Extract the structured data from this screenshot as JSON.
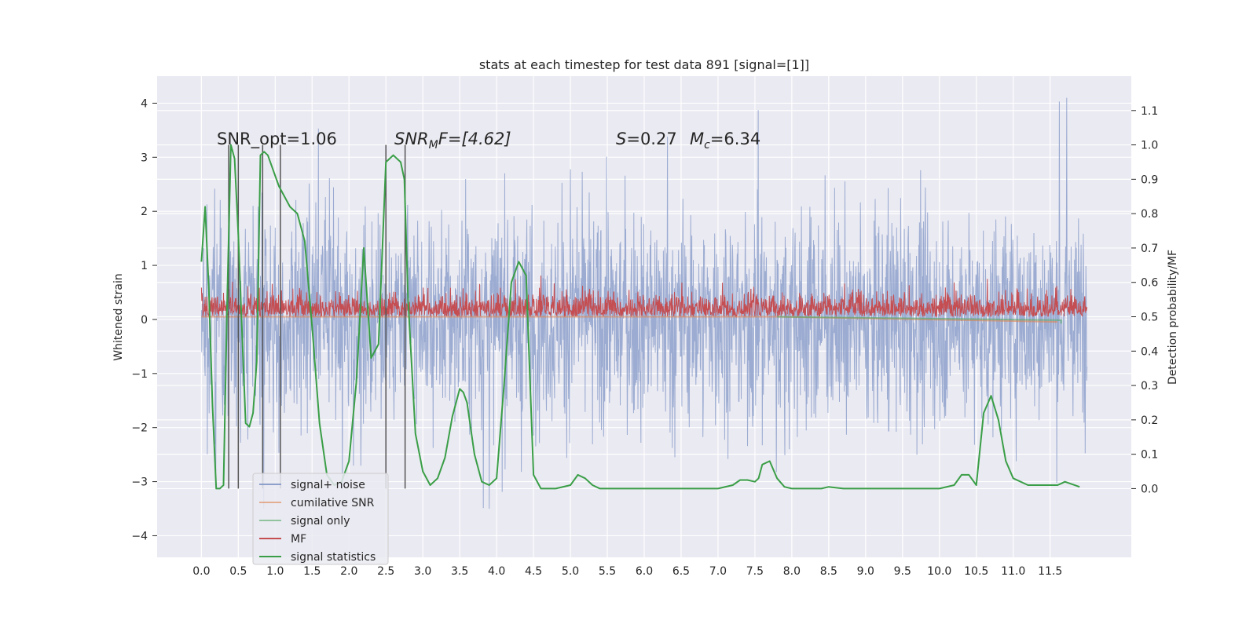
{
  "chart_data": {
    "type": "line",
    "title": "stats at each timestep for test data 891 [signal=[1]]",
    "xlabel": "",
    "ylabel": "Whitened strain",
    "y2label": "Detection probability/MF",
    "xlim": [
      -0.6,
      12.6
    ],
    "ylim": [
      -4.4,
      4.5
    ],
    "y2lim": [
      -0.2,
      1.2
    ],
    "grid": true,
    "legend": "lower-left",
    "x_ticks": [
      "0.0",
      "0.5",
      "1.0",
      "1.5",
      "2.0",
      "2.5",
      "3.0",
      "3.5",
      "4.0",
      "4.5",
      "5.0",
      "5.5",
      "6.0",
      "6.5",
      "7.0",
      "7.5",
      "8.0",
      "8.5",
      "9.0",
      "9.5",
      "10.0",
      "10.5",
      "11.0",
      "11.5"
    ],
    "y_ticks": [
      "4",
      "3",
      "2",
      "1",
      "0",
      "−1",
      "−2",
      "−3",
      "−4"
    ],
    "y_tick_values": [
      4,
      3,
      2,
      1,
      0,
      -1,
      -2,
      -3,
      -4
    ],
    "y2_ticks": [
      "1.1",
      "1.0",
      "0.9",
      "0.8",
      "0.7",
      "0.6",
      "0.5",
      "0.4",
      "0.3",
      "0.2",
      "0.1",
      "0.0"
    ],
    "y2_tick_values": [
      1.1,
      1.0,
      0.9,
      0.8,
      0.7,
      0.6,
      0.5,
      0.4,
      0.3,
      0.2,
      0.1,
      0.0
    ],
    "annotations": {
      "snr_opt": "SNR_opt=1.06",
      "snr_mf_italic": "SNR",
      "snr_mf_sub": "M",
      "snr_mf_rest": "F=[4.62]",
      "s_italic": "S",
      "s_rest": "=0.27",
      "mc_italic": "M",
      "mc_sub": "c",
      "mc_rest": "=6.34"
    },
    "vertical_markers_x": [
      0.37,
      0.5,
      0.83,
      1.07,
      2.5,
      2.76
    ],
    "series": [
      {
        "name": "signal+ noise",
        "color": "#8da0cb",
        "axis": "left",
        "kind": "noise",
        "t_start": 0.0,
        "t_end": 12.0,
        "envelope": [
          -3.5,
          4.1
        ]
      },
      {
        "name": "cumilative SNR",
        "color": "#dd8452",
        "axis": "right",
        "kind": "line"
      },
      {
        "name": "signal only",
        "color": "#55a868",
        "axis": "right",
        "kind": "line"
      },
      {
        "name": "MF",
        "color": "#c44e52",
        "axis": "right",
        "kind": "noise",
        "t_start": 0.0,
        "t_end": 12.0,
        "envelope": [
          0.5,
          0.62
        ]
      },
      {
        "name": "signal statistics",
        "color": "#3a9e47",
        "axis": "right",
        "kind": "line",
        "x": [
          0.0,
          0.05,
          0.1,
          0.15,
          0.2,
          0.25,
          0.3,
          0.35,
          0.4,
          0.45,
          0.5,
          0.55,
          0.6,
          0.65,
          0.7,
          0.75,
          0.8,
          0.85,
          0.9,
          0.95,
          1.0,
          1.05,
          1.1,
          1.2,
          1.3,
          1.4,
          1.5,
          1.6,
          1.7,
          1.8,
          1.9,
          2.0,
          2.1,
          2.2,
          2.3,
          2.4,
          2.5,
          2.55,
          2.6,
          2.65,
          2.7,
          2.75,
          2.8,
          2.9,
          3.0,
          3.1,
          3.2,
          3.3,
          3.4,
          3.5,
          3.55,
          3.6,
          3.7,
          3.8,
          3.9,
          4.0,
          4.1,
          4.2,
          4.3,
          4.4,
          4.5,
          4.6,
          4.7,
          4.8,
          5.0,
          5.1,
          5.2,
          5.3,
          5.4,
          5.5,
          6.0,
          6.5,
          6.7,
          7.0,
          7.2,
          7.3,
          7.4,
          7.5,
          7.55,
          7.6,
          7.7,
          7.8,
          7.9,
          8.0,
          8.4,
          8.5,
          8.7,
          9.0,
          9.5,
          10.0,
          10.2,
          10.3,
          10.4,
          10.5,
          10.6,
          10.7,
          10.8,
          10.9,
          11.0,
          11.2,
          11.4,
          11.6,
          11.65,
          11.7,
          11.9
        ],
        "y": [
          0.66,
          0.82,
          0.58,
          0.24,
          0.0,
          0.0,
          0.01,
          0.55,
          1.0,
          0.96,
          0.74,
          0.46,
          0.19,
          0.18,
          0.22,
          0.37,
          0.97,
          0.98,
          0.97,
          0.94,
          0.91,
          0.88,
          0.86,
          0.82,
          0.8,
          0.72,
          0.47,
          0.19,
          0.04,
          0.01,
          0.02,
          0.08,
          0.31,
          0.7,
          0.38,
          0.42,
          0.95,
          0.96,
          0.97,
          0.96,
          0.95,
          0.9,
          0.55,
          0.16,
          0.05,
          0.01,
          0.03,
          0.09,
          0.21,
          0.29,
          0.28,
          0.25,
          0.1,
          0.02,
          0.01,
          0.03,
          0.3,
          0.6,
          0.66,
          0.62,
          0.04,
          0.0,
          0.0,
          0.0,
          0.01,
          0.04,
          0.03,
          0.01,
          0.0,
          0.0,
          0.0,
          0.0,
          0.0,
          0.0,
          0.01,
          0.025,
          0.025,
          0.02,
          0.03,
          0.07,
          0.08,
          0.03,
          0.005,
          0.0,
          0.0,
          0.005,
          0.0,
          0.0,
          0.0,
          0.0,
          0.01,
          0.04,
          0.04,
          0.01,
          0.22,
          0.27,
          0.2,
          0.08,
          0.03,
          0.01,
          0.01,
          0.01,
          0.015,
          0.02,
          0.005
        ]
      }
    ]
  }
}
